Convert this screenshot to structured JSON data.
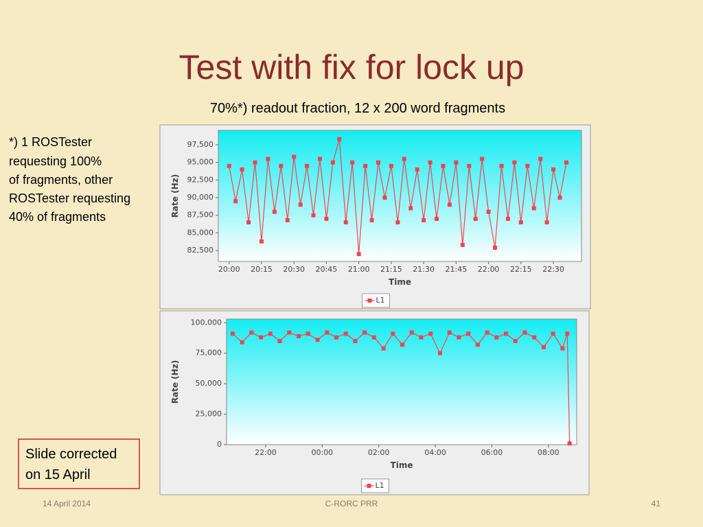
{
  "slide": {
    "title": "Test with fix for lock up",
    "subtitle": "70%*) readout fraction, 12 x 200 word fragments",
    "note": [
      "*) 1 ROSTester",
      "requesting 100%",
      "of fragments, other",
      "ROSTester requesting",
      "40% of fragments"
    ],
    "correction": [
      "Slide corrected",
      "on 15 April"
    ],
    "footer_date": "14 April 2014",
    "footer_center": "C-RORC PRR",
    "page_number": "41"
  },
  "chart_data": [
    {
      "type": "line",
      "xlabel": "Time",
      "ylabel": "Rate (Hz)",
      "xlim": [
        "19:55",
        "22:43"
      ],
      "ylim": [
        80950,
        99550
      ],
      "xticks": [
        "20:00",
        "20:15",
        "20:30",
        "20:45",
        "21:00",
        "21:15",
        "21:30",
        "21:45",
        "22:00",
        "22:15",
        "22:30"
      ],
      "yticks": [
        {
          "value": 82500,
          "label": "82,500"
        },
        {
          "value": 85000,
          "label": "85,000"
        },
        {
          "value": 87500,
          "label": "87,500"
        },
        {
          "value": 90000,
          "label": "90,000"
        },
        {
          "value": 92500,
          "label": "92,500"
        },
        {
          "value": 95000,
          "label": "95,000"
        },
        {
          "value": 97500,
          "label": "97,500"
        }
      ],
      "x": [
        "20:00",
        "20:03",
        "20:06",
        "20:09",
        "20:12",
        "20:15",
        "20:18",
        "20:21",
        "20:24",
        "20:27",
        "20:30",
        "20:33",
        "20:36",
        "20:39",
        "20:42",
        "20:45",
        "20:48",
        "20:51",
        "20:54",
        "20:57",
        "21:00",
        "21:03",
        "21:06",
        "21:09",
        "21:12",
        "21:15",
        "21:18",
        "21:21",
        "21:24",
        "21:27",
        "21:30",
        "21:33",
        "21:36",
        "21:39",
        "21:42",
        "21:45",
        "21:48",
        "21:51",
        "21:54",
        "21:57",
        "22:00",
        "22:03",
        "22:06",
        "22:09",
        "22:12",
        "22:15",
        "22:18",
        "22:21",
        "22:24",
        "22:27",
        "22:30",
        "22:33",
        "22:36"
      ],
      "series": [
        {
          "name": "L1",
          "color": "#f2434f",
          "values": [
            94500,
            89500,
            94000,
            86500,
            95000,
            83800,
            95500,
            88000,
            94500,
            86800,
            95800,
            89000,
            94500,
            87500,
            95500,
            87000,
            95000,
            98300,
            86500,
            95000,
            82000,
            94500,
            86800,
            95000,
            90000,
            94500,
            86500,
            95500,
            88500,
            94000,
            86800,
            95000,
            87000,
            94500,
            89000,
            95000,
            83300,
            94500,
            87000,
            95500,
            88000,
            82900,
            94500,
            87000,
            95000,
            86500,
            94500,
            88500,
            95500,
            86500,
            94000,
            90000,
            95000
          ]
        }
      ]
    },
    {
      "type": "line",
      "xlabel": "Time",
      "ylabel": "Rate (Hz)",
      "xlim": [
        "20:37",
        "09:00"
      ],
      "ylim": [
        0,
        103000
      ],
      "xticks": [
        "22:00",
        "00:00",
        "02:00",
        "04:00",
        "06:00",
        "08:00"
      ],
      "yticks": [
        0,
        {
          "value": 25000,
          "label": "25,000"
        },
        {
          "value": 50000,
          "label": "50,000"
        },
        {
          "value": 75000,
          "label": "75,000"
        },
        {
          "value": 100000,
          "label": "100,000"
        }
      ],
      "x": [
        "20:50",
        "21:10",
        "21:30",
        "21:50",
        "22:10",
        "22:30",
        "22:50",
        "23:10",
        "23:30",
        "23:50",
        "00:10",
        "00:30",
        "00:50",
        "01:10",
        "01:30",
        "01:50",
        "02:10",
        "02:30",
        "02:50",
        "03:10",
        "03:30",
        "03:50",
        "04:10",
        "04:30",
        "04:50",
        "05:10",
        "05:30",
        "05:50",
        "06:10",
        "06:30",
        "06:50",
        "07:10",
        "07:30",
        "07:50",
        "08:10",
        "08:30",
        "08:40",
        "08:45"
      ],
      "series": [
        {
          "name": "L1",
          "color": "#f2434f",
          "values": [
            91000,
            84000,
            92000,
            88000,
            91000,
            85000,
            92000,
            89000,
            91000,
            86000,
            92000,
            88000,
            91000,
            85000,
            92000,
            88000,
            79000,
            91000,
            82000,
            92000,
            88000,
            91000,
            75000,
            92000,
            88000,
            91000,
            82000,
            92000,
            88000,
            91000,
            85000,
            92000,
            88000,
            80000,
            91000,
            79000,
            91000,
            1000
          ]
        }
      ]
    }
  ]
}
